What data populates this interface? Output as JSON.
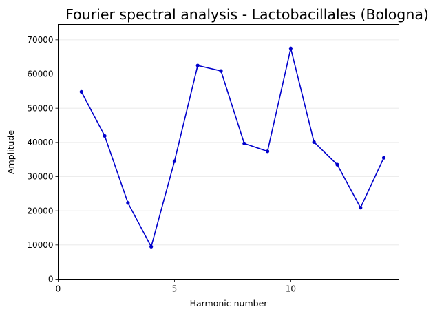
{
  "chart_data": {
    "type": "line",
    "title": "Fourier spectral analysis - Lactobacillales (Bologna)",
    "xlabel": "Harmonic number",
    "ylabel": "Amplitude",
    "xlim": [
      0,
      14.65
    ],
    "ylim": [
      0,
      74500
    ],
    "x_ticks": [
      0,
      5,
      10
    ],
    "y_ticks": [
      0,
      10000,
      20000,
      30000,
      40000,
      50000,
      60000,
      70000
    ],
    "grid": "horizontal",
    "series": [
      {
        "color": "#0000cc",
        "x": [
          1,
          2,
          3,
          4,
          5,
          6,
          7,
          8,
          9,
          10,
          11,
          12,
          13,
          14
        ],
        "values": [
          54800,
          41900,
          22300,
          9500,
          34500,
          62500,
          60900,
          39700,
          37400,
          67500,
          40100,
          33500,
          20900,
          35500
        ]
      }
    ]
  }
}
